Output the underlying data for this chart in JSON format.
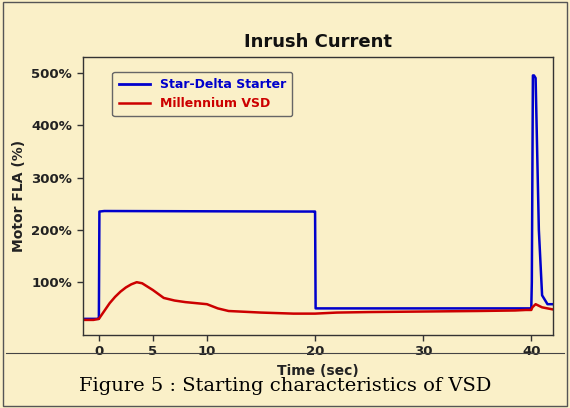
{
  "title": "Inrush Current",
  "xlabel": "Time (sec)",
  "ylabel": "Motor FLA (%)",
  "bg_color": "#FAF0C8",
  "plot_bg_color": "#FAF0C8",
  "border_color": "#333333",
  "title_fontsize": 13,
  "label_fontsize": 10,
  "tick_fontsize": 9.5,
  "legend_labels": [
    "Star-Delta Starter",
    "Millennium VSD"
  ],
  "legend_colors": [
    "#0000CC",
    "#CC0000"
  ],
  "xlim": [
    -1.5,
    42
  ],
  "ylim": [
    0,
    530
  ],
  "yticks": [
    100,
    200,
    300,
    400,
    500
  ],
  "ytick_labels": [
    "100%",
    "200%",
    "300%",
    "400%",
    "500%"
  ],
  "xticks": [
    0,
    5,
    10,
    20,
    30,
    40
  ],
  "caption": "Figure 5 : Starting characteristics of VSD",
  "caption_fontsize": 14,
  "blue_line": {
    "x": [
      -1.5,
      -0.05,
      0.0,
      0.05,
      0.5,
      18.5,
      19.0,
      19.5,
      19.95,
      20.0,
      20.05,
      38.0,
      39.5,
      39.8,
      39.9,
      40.0,
      40.05,
      40.15,
      40.25,
      40.4,
      40.7,
      41.0,
      41.5,
      42.0
    ],
    "y": [
      30,
      30,
      30,
      235,
      236,
      235,
      235,
      235,
      235,
      235,
      50,
      50,
      50,
      50,
      50,
      50,
      100,
      495,
      495,
      490,
      200,
      75,
      58,
      58
    ]
  },
  "red_line": {
    "x": [
      -1.5,
      -0.5,
      0.0,
      0.5,
      1.0,
      1.5,
      2.0,
      2.5,
      3.0,
      3.5,
      4.0,
      5.0,
      6.0,
      7.0,
      8.0,
      9.0,
      10.0,
      11.0,
      12.0,
      15.0,
      18.0,
      20.0,
      22.0,
      25.0,
      30.0,
      35.0,
      38.5,
      39.5,
      40.0,
      40.1,
      40.4,
      41.0,
      42.0
    ],
    "y": [
      28,
      28,
      30,
      45,
      60,
      72,
      82,
      90,
      96,
      100,
      98,
      85,
      70,
      65,
      62,
      60,
      58,
      50,
      45,
      42,
      40,
      40,
      42,
      43,
      44,
      45,
      46,
      47,
      47,
      52,
      58,
      52,
      48
    ]
  }
}
